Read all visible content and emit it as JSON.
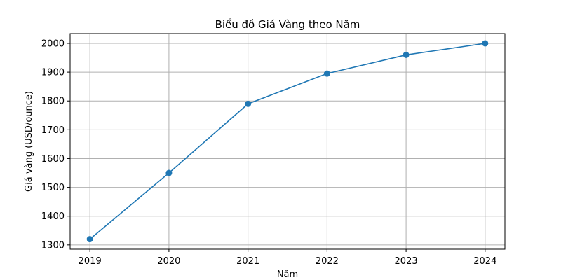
{
  "chart_data": {
    "type": "line",
    "title": "Biểu đồ Giá Vàng theo Năm",
    "xlabel": "Năm",
    "ylabel": "Giá vàng (USD/ounce)",
    "x": [
      "2019",
      "2020",
      "2021",
      "2022",
      "2023",
      "2024"
    ],
    "series": [
      {
        "values": [
          1320,
          1550,
          1790,
          1895,
          1960,
          2000
        ]
      }
    ],
    "xlim": [
      2018.75,
      2024.25
    ],
    "ylim": [
      1285,
      2034
    ],
    "yticks": [
      1300,
      1400,
      1500,
      1600,
      1700,
      1800,
      1900,
      2000
    ],
    "grid": true,
    "line_color": "#1f77b4",
    "marker": "circle"
  }
}
